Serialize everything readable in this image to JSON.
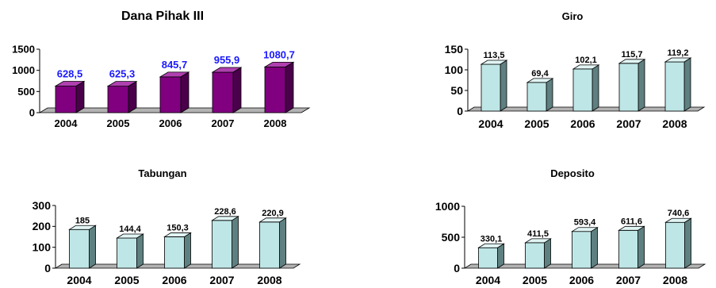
{
  "chart_data": [
    {
      "type": "bar",
      "title": "Dana Pihak III",
      "categories": [
        "2004",
        "2005",
        "2006",
        "2007",
        "2008"
      ],
      "values": [
        628.5,
        625.3,
        845.7,
        955.9,
        1080.7
      ],
      "value_labels": [
        "628,5",
        "625,3",
        "845,7",
        "955,9",
        "1080,7"
      ],
      "ylim": [
        0,
        1500
      ],
      "yticks": [
        "0",
        "500",
        "1000",
        "1500"
      ],
      "style": "3d-bar",
      "colors": {
        "front": "#800080",
        "top": "#b040b0",
        "side": "#4a004a",
        "label": "#1a1aff"
      },
      "grid": false,
      "legend": "none"
    },
    {
      "type": "bar",
      "title": "Giro",
      "categories": [
        "2004",
        "2005",
        "2006",
        "2007",
        "2008"
      ],
      "values": [
        113.5,
        69.4,
        102.1,
        115.7,
        119.2
      ],
      "value_labels": [
        "113,5",
        "69,4",
        "102,1",
        "115,7",
        "119,2"
      ],
      "ylim": [
        0,
        150
      ],
      "yticks": [
        "0",
        "50",
        "100",
        "150"
      ],
      "style": "3d-bar",
      "colors": {
        "front": "#bfe6e6",
        "top": "#e2f5f5",
        "side": "#5f8080",
        "label": "#000000"
      },
      "grid": false,
      "legend": "none"
    },
    {
      "type": "bar",
      "title": "Tabungan",
      "categories": [
        "2004",
        "2005",
        "2006",
        "2007",
        "2008"
      ],
      "values": [
        185,
        144.4,
        150.3,
        228.6,
        220.9
      ],
      "value_labels": [
        "185",
        "144,4",
        "150,3",
        "228,6",
        "220,9"
      ],
      "ylim": [
        0,
        300
      ],
      "yticks": [
        "0",
        "100",
        "200",
        "300"
      ],
      "style": "3d-bar",
      "colors": {
        "front": "#bfe6e6",
        "top": "#e2f5f5",
        "side": "#5f8080",
        "label": "#000000"
      },
      "grid": false,
      "legend": "none"
    },
    {
      "type": "bar",
      "title": "Deposito",
      "categories": [
        "2004",
        "2005",
        "2006",
        "2007",
        "2008"
      ],
      "values": [
        330.1,
        411.5,
        593.4,
        611.6,
        740.6
      ],
      "value_labels": [
        "330,1",
        "411,5",
        "593,4",
        "611,6",
        "740,6"
      ],
      "ylim": [
        0,
        1000
      ],
      "yticks": [
        "0",
        "500",
        "1000"
      ],
      "style": "3d-bar",
      "colors": {
        "front": "#bfe6e6",
        "top": "#e2f5f5",
        "side": "#5f8080",
        "label": "#000000"
      },
      "grid": false,
      "legend": "none"
    }
  ]
}
